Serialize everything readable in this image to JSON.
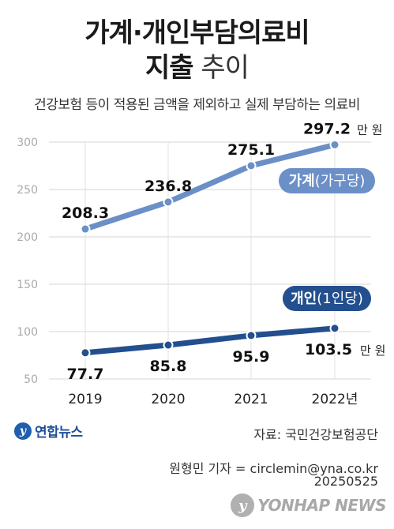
{
  "header": {
    "title_line1": "가계·개인부담의료비",
    "title_line2_bold": "지출",
    "title_line2_light": " 추이",
    "subtitle": "건강보험 등이 적용된 금액을 제외하고 실제 부담하는 의료비"
  },
  "chart_data": {
    "type": "line",
    "categories": [
      "2019",
      "2020",
      "2021",
      "2022년"
    ],
    "ylim": [
      50,
      300
    ],
    "yticks": [
      50,
      100,
      150,
      200,
      250,
      300
    ],
    "grid": true,
    "unit": "만 원",
    "series": [
      {
        "name": "가계",
        "name_suffix": "(가구당)",
        "values": [
          208.3,
          236.8,
          275.1,
          297.2
        ],
        "labels": [
          "208.3",
          "236.8",
          "275.1",
          "297.2"
        ],
        "color": "#6b8fc7"
      },
      {
        "name": "개인",
        "name_suffix": "(1인당)",
        "values": [
          77.7,
          85.8,
          95.9,
          103.5
        ],
        "labels": [
          "77.7",
          "85.8",
          "95.9",
          "103.5"
        ],
        "color": "#234f8f"
      }
    ]
  },
  "footer": {
    "logo_text": "연합뉴스",
    "logo_icon": "yonhap-logo-icon",
    "source": "자료: 국민건강보험공단",
    "reporter": "원형민 기자 = circlemin@yna.co.kr",
    "date": "20250525",
    "watermark": "YONHAP NEWS"
  }
}
